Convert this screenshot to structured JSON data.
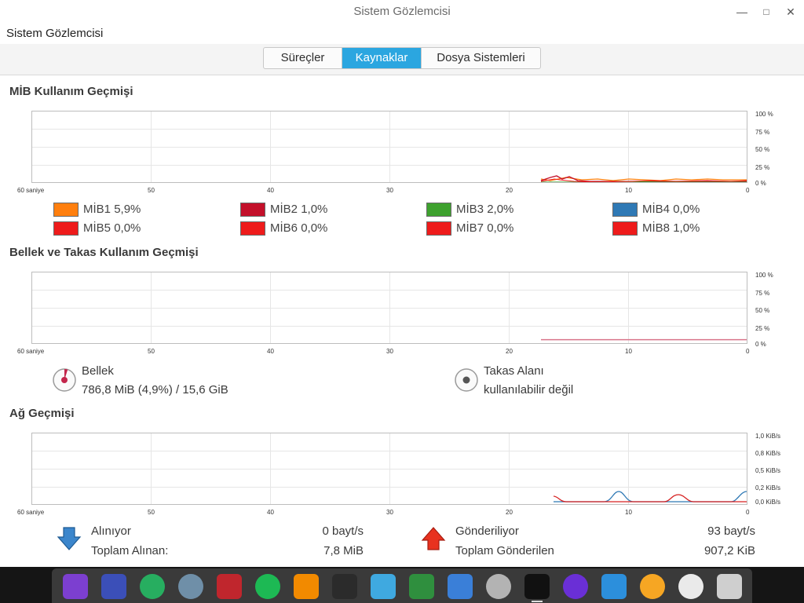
{
  "window": {
    "title": "Sistem Gözlemcisi",
    "menu_title": "Sistem Gözlemcisi"
  },
  "tabs": [
    {
      "label": "Süreçler",
      "active": false
    },
    {
      "label": "Kaynaklar",
      "active": true
    },
    {
      "label": "Dosya Sistemleri",
      "active": false
    }
  ],
  "x_ticks": [
    "60 saniye",
    "50",
    "40",
    "30",
    "20",
    "10",
    "0"
  ],
  "cpu": {
    "title": "MİB Kullanım Geçmişi",
    "y_ticks": [
      "100 %",
      "75 %",
      "50 %",
      "25 %",
      "0 %"
    ],
    "legend": [
      {
        "label": "MİB1",
        "value": "5,9%",
        "color": "#ff7f0e"
      },
      {
        "label": "MİB2",
        "value": "1,0%",
        "color": "#c3102a"
      },
      {
        "label": "MİB3",
        "value": "2,0%",
        "color": "#3ea12e"
      },
      {
        "label": "MİB4",
        "value": "0,0%",
        "color": "#2f79b5"
      },
      {
        "label": "MİB5",
        "value": "0,0%",
        "color": "#ee1b1b"
      },
      {
        "label": "MİB6",
        "value": "0,0%",
        "color": "#ee1b1b"
      },
      {
        "label": "MİB7",
        "value": "0,0%",
        "color": "#ee1b1b"
      },
      {
        "label": "MİB8",
        "value": "1,0%",
        "color": "#ee1b1b"
      }
    ]
  },
  "memory": {
    "title": "Bellek ve Takas Kullanım Geçmişi",
    "y_ticks": [
      "100 %",
      "75 %",
      "50 %",
      "25 %",
      "0 %"
    ],
    "mem_label": "Bellek",
    "mem_value": "786,8 MiB (4,9%) / 15,6 GiB",
    "mem_fraction": 0.049,
    "swap_label": "Takas Alanı",
    "swap_value": "kullanılabilir değil",
    "line_color": "#d9748a"
  },
  "network": {
    "title": "Ağ Geçmişi",
    "y_ticks": [
      "1,0 KiB/s",
      "0,8 KiB/s",
      "0,5 KiB/s",
      "0,2 KiB/s",
      "0,0 KiB/s"
    ],
    "recv_label": "Alınıyor",
    "recv_value": "0 bayt/s",
    "recv_total_label": "Toplam Alınan:",
    "recv_total_value": "7,8 MiB",
    "send_label": "Gönderiliyor",
    "send_value": "93 bayt/s",
    "send_total_label": "Toplam Gönderilen",
    "send_total_value": "907,2 KiB",
    "recv_color": "#2f79b5",
    "send_color": "#d62020"
  },
  "dock": {
    "apps": [
      {
        "name": "rocket-launcher-icon",
        "color": "#7c3fd0"
      },
      {
        "name": "text-editor-icon",
        "color": "#3b4fb8"
      },
      {
        "name": "store-icon",
        "color": "#27ae60"
      },
      {
        "name": "browser-icon",
        "color": "#6f8fa8"
      },
      {
        "name": "terminal-icon",
        "color": "#c0262d"
      },
      {
        "name": "spotify-icon",
        "color": "#1db954"
      },
      {
        "name": "vlc-icon",
        "color": "#f28a00"
      },
      {
        "name": "notes-icon",
        "color": "#2b2b2b"
      },
      {
        "name": "archive-icon",
        "color": "#3fa9e0"
      },
      {
        "name": "android-store-icon",
        "color": "#2f8f3e"
      },
      {
        "name": "video-player-icon",
        "color": "#3a7fd8"
      },
      {
        "name": "settings-icon",
        "color": "#b3b3b3"
      },
      {
        "name": "system-monitor-icon",
        "color": "#111111"
      },
      {
        "name": "power-icon",
        "color": "#6a2fd6"
      },
      {
        "name": "update-icon",
        "color": "#2c8fdc"
      },
      {
        "name": "clock-icon",
        "color": "#f6a623"
      },
      {
        "name": "time-widget-icon",
        "color": "#eaeaea"
      },
      {
        "name": "trash-icon",
        "color": "#cfcfcf"
      }
    ]
  }
}
